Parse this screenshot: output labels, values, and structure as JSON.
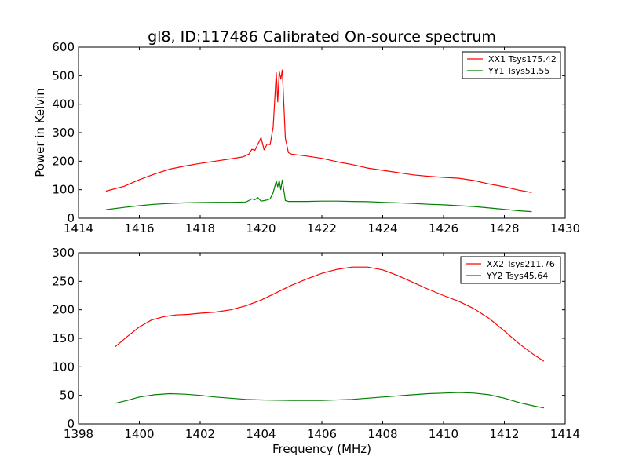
{
  "chart_data": [
    {
      "type": "line",
      "title": "gl8, ID:117486 Calibrated On-source spectrum",
      "xlabel": "",
      "ylabel": "Power in Kelvin",
      "xlim": [
        1414,
        1430
      ],
      "ylim": [
        0,
        600
      ],
      "xticks": [
        "1414",
        "1416",
        "1418",
        "1420",
        "1422",
        "1424",
        "1426",
        "1428",
        "1430"
      ],
      "yticks": [
        "0",
        "100",
        "200",
        "300",
        "400",
        "500",
        "600"
      ],
      "grid": false,
      "legend_position": "top-right",
      "series": [
        {
          "name": "XX1 Tsys175.42",
          "color": "#ff0000",
          "x": [
            1414.9,
            1415.5,
            1416.0,
            1416.5,
            1417.0,
            1417.5,
            1418.0,
            1418.5,
            1419.0,
            1419.4,
            1419.6,
            1419.7,
            1419.8,
            1419.9,
            1420.0,
            1420.1,
            1420.2,
            1420.3,
            1420.4,
            1420.5,
            1420.55,
            1420.6,
            1420.65,
            1420.7,
            1420.8,
            1420.9,
            1421.0,
            1421.5,
            1422.0,
            1422.5,
            1423.0,
            1423.5,
            1424.0,
            1424.5,
            1425.0,
            1425.5,
            1426.0,
            1426.5,
            1427.0,
            1427.5,
            1428.0,
            1428.5,
            1428.9
          ],
          "y": [
            95,
            112,
            135,
            155,
            172,
            183,
            192,
            200,
            208,
            215,
            225,
            242,
            238,
            260,
            283,
            240,
            260,
            258,
            320,
            510,
            408,
            515,
            488,
            520,
            280,
            230,
            225,
            218,
            210,
            198,
            188,
            176,
            168,
            160,
            152,
            147,
            143,
            140,
            132,
            120,
            110,
            98,
            90
          ]
        },
        {
          "name": "YY1 Tsys51.55",
          "color": "#008000",
          "x": [
            1414.9,
            1415.5,
            1416.0,
            1416.5,
            1417.0,
            1417.5,
            1418.0,
            1418.5,
            1419.0,
            1419.5,
            1419.6,
            1419.7,
            1419.8,
            1419.9,
            1420.0,
            1420.1,
            1420.2,
            1420.3,
            1420.4,
            1420.5,
            1420.55,
            1420.6,
            1420.65,
            1420.7,
            1420.8,
            1420.9,
            1421.5,
            1422.0,
            1422.5,
            1423.0,
            1423.5,
            1424.0,
            1424.5,
            1425.0,
            1425.5,
            1426.0,
            1426.5,
            1427.0,
            1427.5,
            1428.0,
            1428.5,
            1428.9
          ],
          "y": [
            30,
            38,
            44,
            49,
            52,
            54,
            55,
            56,
            56,
            57,
            62,
            68,
            65,
            72,
            60,
            62,
            64,
            68,
            90,
            130,
            110,
            132,
            100,
            134,
            62,
            59,
            59,
            60,
            60,
            59,
            58,
            56,
            54,
            52,
            49,
            47,
            44,
            41,
            36,
            31,
            26,
            23
          ]
        }
      ]
    },
    {
      "type": "line",
      "title": "",
      "xlabel": "Frequency (MHz)",
      "ylabel": "",
      "xlim": [
        1398,
        1414
      ],
      "ylim": [
        0,
        300
      ],
      "xticks": [
        "1398",
        "1400",
        "1402",
        "1404",
        "1406",
        "1408",
        "1410",
        "1412",
        "1414"
      ],
      "yticks": [
        "0",
        "50",
        "100",
        "150",
        "200",
        "250",
        "300"
      ],
      "grid": false,
      "legend_position": "top-right",
      "series": [
        {
          "name": "XX2 Tsys211.76",
          "color": "#ff0000",
          "x": [
            1399.2,
            1399.6,
            1400.0,
            1400.4,
            1400.8,
            1401.2,
            1401.6,
            1402.0,
            1402.5,
            1403.0,
            1403.5,
            1404.0,
            1404.5,
            1405.0,
            1405.5,
            1406.0,
            1406.5,
            1407.0,
            1407.5,
            1408.0,
            1408.5,
            1409.0,
            1409.5,
            1410.0,
            1410.5,
            1411.0,
            1411.5,
            1412.0,
            1412.5,
            1413.0,
            1413.3
          ],
          "y": [
            135,
            153,
            170,
            182,
            188,
            191,
            192,
            194,
            196,
            200,
            207,
            217,
            230,
            243,
            254,
            264,
            271,
            275,
            275,
            270,
            260,
            248,
            236,
            225,
            215,
            202,
            185,
            163,
            140,
            120,
            110
          ]
        },
        {
          "name": "YY2 Tsys45.64",
          "color": "#008000",
          "x": [
            1399.2,
            1399.6,
            1400.0,
            1400.5,
            1401.0,
            1401.5,
            1402.0,
            1402.5,
            1403.0,
            1403.5,
            1404.0,
            1405.0,
            1406.0,
            1407.0,
            1408.0,
            1409.0,
            1409.5,
            1410.0,
            1410.5,
            1411.0,
            1411.5,
            1412.0,
            1412.5,
            1413.0,
            1413.3
          ],
          "y": [
            36,
            41,
            47,
            51,
            53,
            52,
            50,
            47,
            45,
            43,
            42,
            41,
            41,
            43,
            47,
            51,
            53,
            54,
            55,
            54,
            51,
            45,
            37,
            31,
            28
          ]
        }
      ]
    }
  ]
}
